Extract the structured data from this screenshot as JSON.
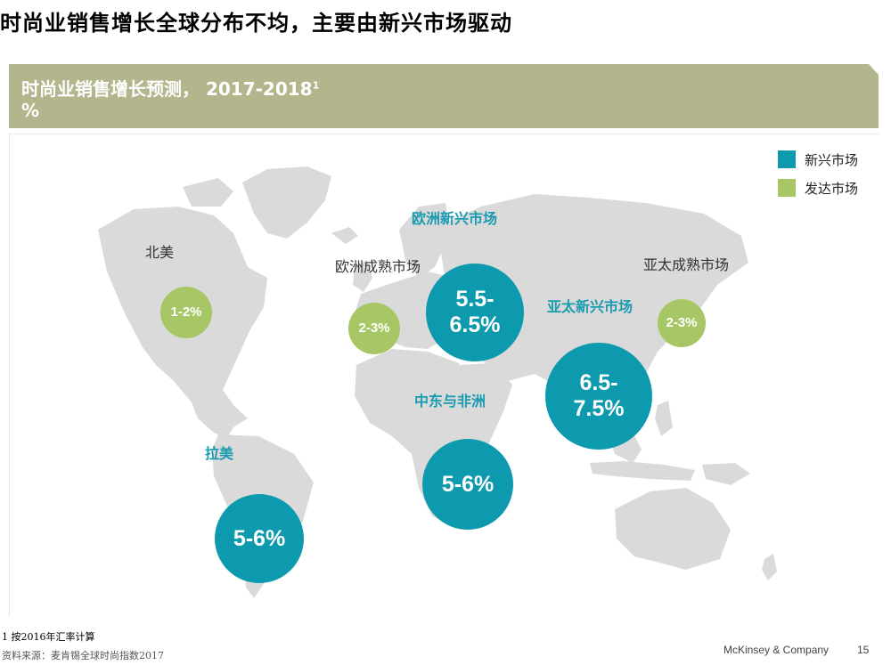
{
  "title": "时尚业销售增长全球分布不均，主要由新兴市场驱动",
  "panel": {
    "title": "时尚业销售增长预测， 2017-2018",
    "title_sup": "1",
    "unit": "%"
  },
  "legend": [
    {
      "label": "新兴市场",
      "color": "#0e9aae"
    },
    {
      "label": "发达市场",
      "color": "#a7c766"
    }
  ],
  "regions": {
    "north_america": {
      "label": "北美",
      "value": "1-2%",
      "type": "developed"
    },
    "europe_mature": {
      "label": "欧洲成熟市场",
      "value": "2-3%",
      "type": "developed"
    },
    "europe_emerging": {
      "label": "欧洲新兴市场",
      "value_line1": "5.5-",
      "value_line2": "6.5%",
      "type": "emerging"
    },
    "apac_emerging": {
      "label": "亚太新兴市场",
      "value_line1": "6.5-",
      "value_line2": "7.5%",
      "type": "emerging"
    },
    "apac_mature": {
      "label": "亚太成熟市场",
      "value": "2-3%",
      "type": "developed"
    },
    "mea": {
      "label": "中东与非洲",
      "value": "5-6%",
      "type": "emerging"
    },
    "latam": {
      "label": "拉美",
      "value": "5-6%",
      "type": "emerging"
    }
  },
  "footnote": "1 按2016年汇率计算",
  "source": "资料来源：麦肯锡全球时尚指数2017",
  "brand": "McKinsey & Company",
  "page_number": "15"
}
